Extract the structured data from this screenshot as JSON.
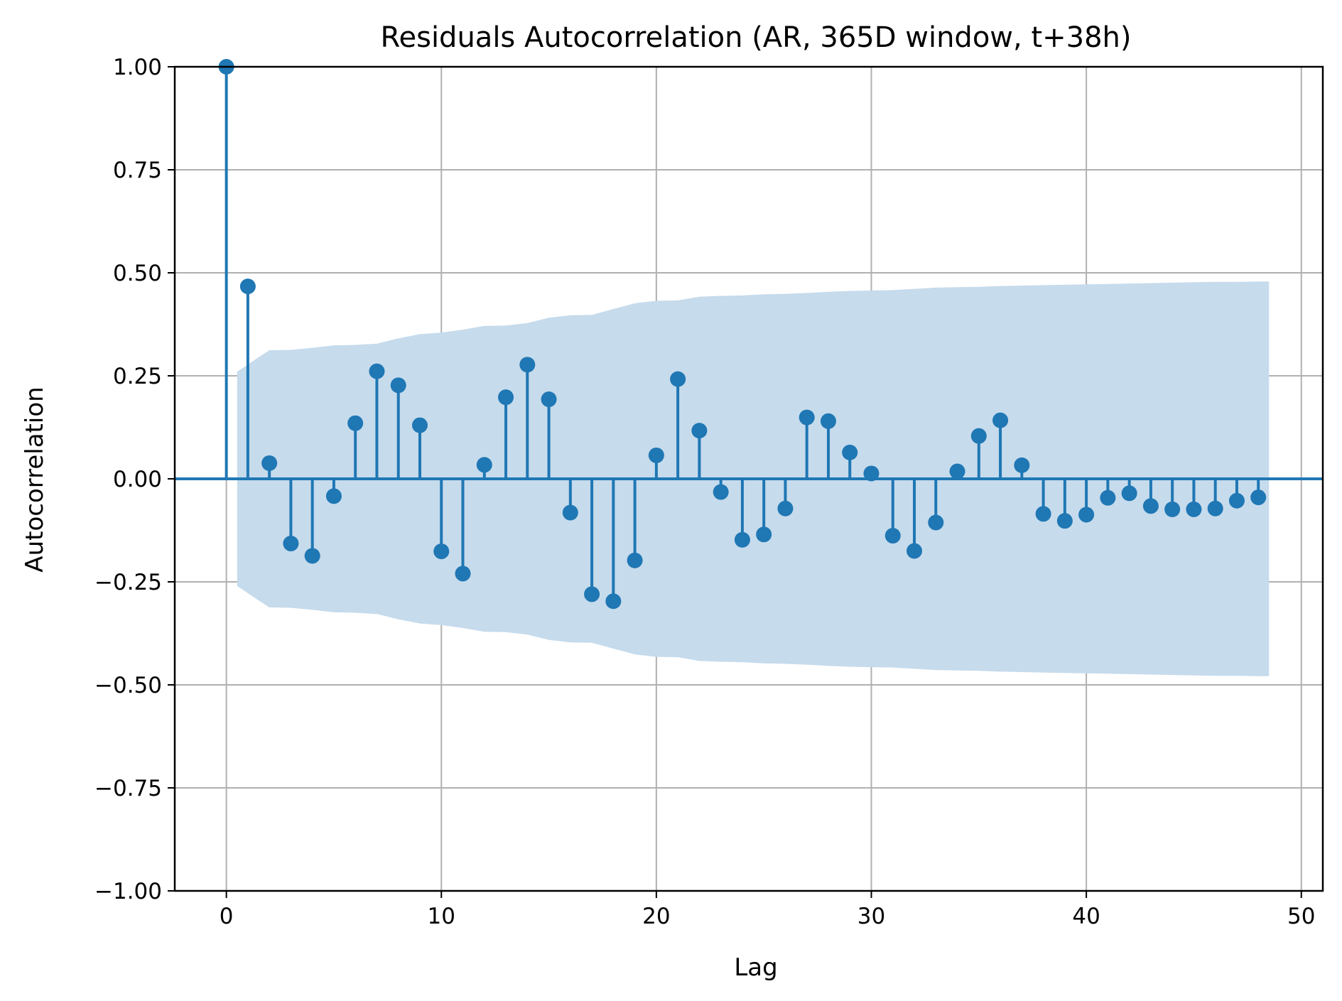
{
  "chart_data": {
    "type": "stem",
    "title": "Residuals Autocorrelation (AR, 365D window, t+38h)",
    "xlabel": "Lag",
    "ylabel": "Autocorrelation",
    "xlim": [
      -2.4,
      51
    ],
    "ylim": [
      -1.0,
      1.0
    ],
    "grid": true,
    "x_ticks": [
      0,
      10,
      20,
      30,
      40,
      50
    ],
    "x_tick_labels": [
      "0",
      "10",
      "20",
      "30",
      "40",
      "50"
    ],
    "y_ticks": [
      1.0,
      0.75,
      0.5,
      0.25,
      0.0,
      -0.25,
      -0.5,
      -0.75,
      -1.0
    ],
    "y_tick_labels": [
      "1.00",
      "0.75",
      "0.50",
      "0.25",
      "0.00",
      "−0.25",
      "−0.50",
      "−0.75",
      "−1.00"
    ],
    "lags": [
      0,
      1,
      2,
      3,
      4,
      5,
      6,
      7,
      8,
      9,
      10,
      11,
      12,
      13,
      14,
      15,
      16,
      17,
      18,
      19,
      20,
      21,
      22,
      23,
      24,
      25,
      26,
      27,
      28,
      29,
      30,
      31,
      32,
      33,
      34,
      35,
      36,
      37,
      38,
      39,
      40,
      41,
      42,
      43,
      44,
      45,
      46,
      47,
      48
    ],
    "acf": [
      1.0,
      0.467,
      0.038,
      -0.157,
      -0.187,
      -0.042,
      0.135,
      0.261,
      0.227,
      0.13,
      -0.176,
      -0.23,
      0.034,
      0.198,
      0.277,
      0.193,
      -0.082,
      -0.28,
      -0.297,
      -0.198,
      0.057,
      0.242,
      0.117,
      -0.032,
      -0.148,
      -0.135,
      -0.072,
      0.149,
      0.14,
      0.064,
      0.013,
      -0.138,
      -0.175,
      -0.106,
      0.018,
      0.104,
      0.142,
      0.033,
      -0.085,
      -0.102,
      -0.087,
      -0.046,
      -0.035,
      -0.066,
      -0.074,
      -0.074,
      -0.072,
      -0.053,
      -0.045
    ],
    "confidence_band": {
      "x": [
        0.5,
        1.5,
        2,
        3,
        4,
        5,
        6,
        7,
        8,
        9,
        10,
        11,
        12,
        13,
        14,
        15,
        16,
        17,
        18,
        19,
        20,
        21,
        22,
        23,
        24,
        25,
        26,
        27,
        28,
        29,
        30,
        31,
        32,
        33,
        34,
        35,
        36,
        37,
        38,
        39,
        40,
        41,
        42,
        43,
        44,
        45,
        46,
        47,
        48,
        48.5
      ],
      "upper": [
        0.26,
        0.295,
        0.312,
        0.313,
        0.318,
        0.324,
        0.325,
        0.328,
        0.341,
        0.351,
        0.355,
        0.362,
        0.371,
        0.372,
        0.378,
        0.391,
        0.397,
        0.398,
        0.412,
        0.426,
        0.432,
        0.433,
        0.442,
        0.444,
        0.445,
        0.448,
        0.449,
        0.451,
        0.454,
        0.456,
        0.457,
        0.458,
        0.461,
        0.464,
        0.465,
        0.466,
        0.468,
        0.469,
        0.47,
        0.471,
        0.472,
        0.473,
        0.474,
        0.475,
        0.476,
        0.477,
        0.478,
        0.478,
        0.479,
        0.479
      ]
    },
    "colors": {
      "stem": "#1f77b4",
      "band": "#c6dbec",
      "grid": "#b0b0b0",
      "axis": "#000000"
    }
  }
}
